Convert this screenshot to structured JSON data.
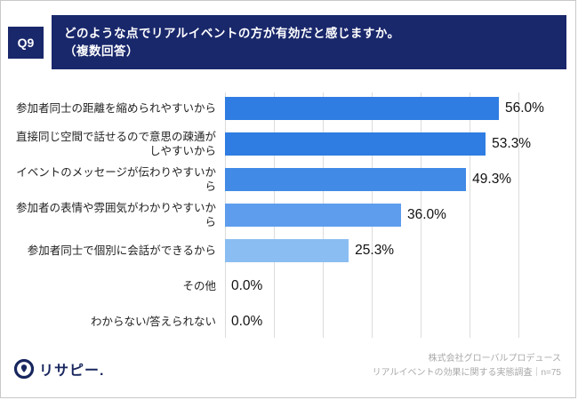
{
  "header": {
    "q_label": "Q9",
    "line1": "どのような点でリアルイベントの方が有効だと感じますか。",
    "line2": "（複数回答）"
  },
  "chart_data": {
    "type": "bar",
    "orientation": "horizontal",
    "categories": [
      "参加者同士の距離を縮められやすいから",
      "直接同じ空間で話せるので意思の疎通がしやすいから",
      "イベントのメッセージが伝わりやすいから",
      "参加者の表情や雰囲気がわかりやすいから",
      "参加者同士で個別に会話ができるから",
      "その他",
      "わからない/答えられない"
    ],
    "values": [
      56.0,
      53.3,
      49.3,
      36.0,
      25.3,
      0.0,
      0.0
    ],
    "value_labels": [
      "56.0%",
      "53.3%",
      "49.3%",
      "36.0%",
      "25.3%",
      "0.0%",
      "0.0%"
    ],
    "bar_colors": [
      "#2f7de2",
      "#2f7de2",
      "#418ae6",
      "#5e9ded",
      "#8abdf1",
      "#8abdf1",
      "#8abdf1"
    ],
    "xlim": [
      0,
      60
    ],
    "ticks": [
      0,
      10,
      20,
      30,
      40,
      50,
      60
    ],
    "grid": true,
    "legend": "none",
    "title": "どのような点でリアルイベントの方が有効だと感じますか。（複数回答）"
  },
  "footer": {
    "logo_text": "リサピー.",
    "source_line1": "株式会社グローバルプロデュース",
    "source_line2": "リアルイベントの効果に関する実態調査｜n=75"
  },
  "colors": {
    "header_bg": "#19276b",
    "logo_navy": "#18265e",
    "gridline": "#dcdcdc"
  }
}
